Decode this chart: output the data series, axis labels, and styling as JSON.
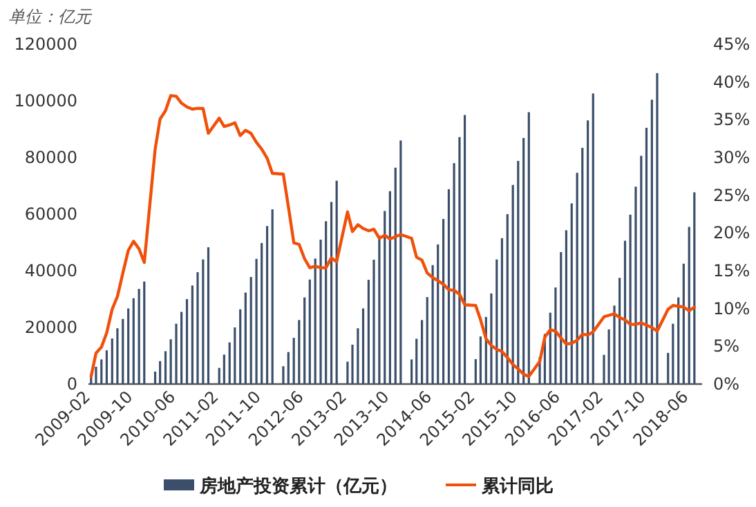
{
  "chart_data": {
    "type": "bar",
    "annotations": [
      "单位：亿元"
    ],
    "x": [
      "2009-02",
      "2009-03",
      "2009-04",
      "2009-05",
      "2009-06",
      "2009-07",
      "2009-08",
      "2009-09",
      "2009-10",
      "2009-11",
      "2009-12",
      "2010-02",
      "2010-03",
      "2010-04",
      "2010-05",
      "2010-06",
      "2010-07",
      "2010-08",
      "2010-09",
      "2010-10",
      "2010-11",
      "2010-12",
      "2011-02",
      "2011-03",
      "2011-04",
      "2011-05",
      "2011-06",
      "2011-07",
      "2011-08",
      "2011-09",
      "2011-10",
      "2011-11",
      "2011-12",
      "2012-02",
      "2012-03",
      "2012-04",
      "2012-05",
      "2012-06",
      "2012-07",
      "2012-08",
      "2012-09",
      "2012-10",
      "2012-11",
      "2012-12",
      "2013-02",
      "2013-03",
      "2013-04",
      "2013-05",
      "2013-06",
      "2013-07",
      "2013-08",
      "2013-09",
      "2013-10",
      "2013-11",
      "2013-12",
      "2014-02",
      "2014-03",
      "2014-04",
      "2014-05",
      "2014-06",
      "2014-07",
      "2014-08",
      "2014-09",
      "2014-10",
      "2014-11",
      "2014-12",
      "2015-02",
      "2015-03",
      "2015-04",
      "2015-05",
      "2015-06",
      "2015-07",
      "2015-08",
      "2015-09",
      "2015-10",
      "2015-11",
      "2015-12",
      "2016-02",
      "2016-03",
      "2016-04",
      "2016-05",
      "2016-06",
      "2016-07",
      "2016-08",
      "2016-09",
      "2016-10",
      "2016-11",
      "2016-12",
      "2017-02",
      "2017-03",
      "2017-04",
      "2017-05",
      "2017-06",
      "2017-07",
      "2017-08",
      "2017-09",
      "2017-10",
      "2017-11",
      "2017-12",
      "2018-02",
      "2018-03",
      "2018-04",
      "2018-05",
      "2018-06",
      "2018-07"
    ],
    "xlim": [
      "2009-01-17",
      "2018-08-14"
    ],
    "xticks": [
      "2009-02",
      "2009-10",
      "2010-06",
      "2011-02",
      "2011-10",
      "2012-06",
      "2013-02",
      "2013-10",
      "2014-06",
      "2015-02",
      "2015-10",
      "2016-06",
      "2017-02",
      "2017-10",
      "2018-06"
    ],
    "ylim": [
      0,
      120000
    ],
    "yticks": [
      0,
      20000,
      40000,
      60000,
      80000,
      100000,
      120000
    ],
    "y2lim": [
      0,
      45
    ],
    "y2ticks": [
      {
        "value": 0,
        "label": "0%"
      },
      {
        "value": 5,
        "label": "5%"
      },
      {
        "value": 10,
        "label": "10%"
      },
      {
        "value": 15,
        "label": "15%"
      },
      {
        "value": 20,
        "label": "20%"
      },
      {
        "value": 25,
        "label": "25%"
      },
      {
        "value": 30,
        "label": "30%"
      },
      {
        "value": 35,
        "label": "35%"
      },
      {
        "value": 40,
        "label": "40%"
      },
      {
        "value": 45,
        "label": "45%"
      }
    ],
    "legend": "bottom",
    "series": [
      {
        "name": "房地产投资累计（亿元）",
        "color": "#3b4f6b",
        "values": [
          3200,
          6100,
          8700,
          11900,
          16100,
          19700,
          23000,
          26700,
          30300,
          33600,
          36200,
          4400,
          8100,
          11600,
          15800,
          21300,
          25500,
          30000,
          34800,
          39500,
          44000,
          48300,
          5700,
          10400,
          14700,
          20000,
          26400,
          32300,
          37800,
          44200,
          49800,
          55800,
          61700,
          6300,
          11300,
          16300,
          22600,
          30600,
          36900,
          44300,
          51000,
          57500,
          64300,
          71800,
          7900,
          13900,
          19700,
          26700,
          36800,
          43900,
          52400,
          61100,
          68100,
          76400,
          86000,
          8700,
          16000,
          22600,
          30700,
          42000,
          49300,
          58300,
          68800,
          78000,
          87200,
          95000,
          8800,
          16800,
          23700,
          32000,
          44000,
          51500,
          60000,
          70300,
          78800,
          86900,
          96000,
          9500,
          17700,
          25200,
          34100,
          46600,
          54300,
          63800,
          74600,
          83400,
          93100,
          102600,
          10300,
          19300,
          27700,
          37500,
          50600,
          59800,
          69700,
          80600,
          90500,
          100400,
          109800,
          11000,
          21300,
          30600,
          42500,
          55500,
          67700
        ]
      },
      {
        "name": "累计同比",
        "type": "line",
        "axis": "y2",
        "color": "#f0500a",
        "values": [
          1.0,
          4.1,
          4.9,
          6.8,
          9.9,
          11.6,
          14.7,
          17.7,
          18.9,
          17.9,
          16.1,
          31.1,
          35.1,
          36.2,
          38.2,
          38.1,
          37.2,
          36.7,
          36.4,
          36.5,
          36.5,
          33.2,
          35.2,
          34.1,
          34.3,
          34.6,
          32.9,
          33.6,
          33.2,
          32.0,
          31.1,
          29.9,
          27.9,
          27.8,
          23.5,
          18.7,
          18.5,
          16.6,
          15.4,
          15.6,
          15.4,
          15.4,
          16.7,
          16.2,
          22.8,
          20.2,
          21.1,
          20.6,
          20.3,
          20.5,
          19.3,
          19.7,
          19.2,
          19.5,
          19.8,
          19.3,
          16.8,
          16.4,
          14.7,
          14.1,
          13.7,
          13.2,
          12.5,
          12.4,
          11.9,
          10.5,
          10.4,
          8.5,
          6.0,
          5.1,
          4.6,
          4.3,
          3.5,
          2.6,
          2.0,
          1.3,
          1.0,
          3.0,
          6.2,
          7.2,
          7.0,
          6.1,
          5.3,
          5.4,
          5.8,
          6.6,
          6.5,
          6.9,
          8.9,
          9.1,
          9.3,
          8.8,
          8.5,
          7.9,
          7.9,
          8.1,
          7.8,
          7.5,
          7.0,
          9.9,
          10.4,
          10.3,
          10.2,
          9.7,
          10.2
        ]
      }
    ]
  }
}
